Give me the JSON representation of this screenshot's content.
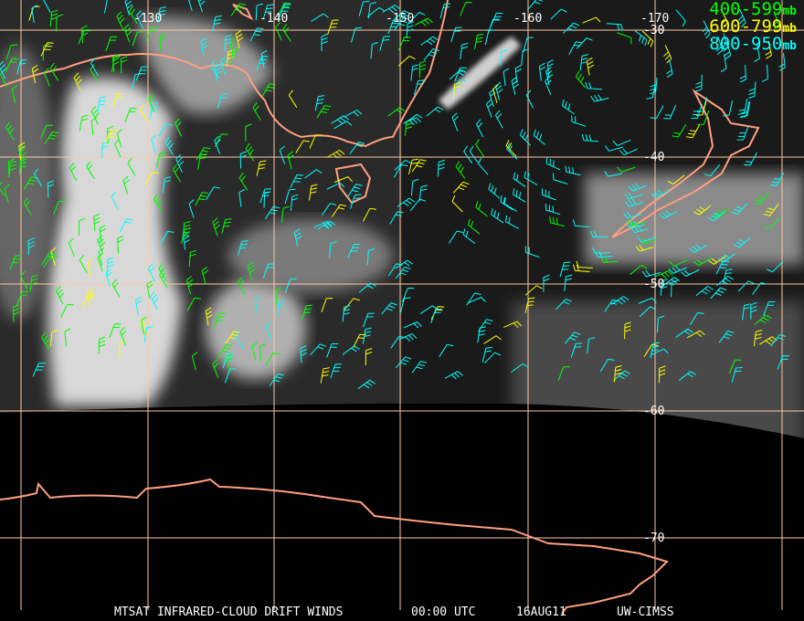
{
  "map": {
    "longitude_labels": [
      "-130",
      "-140",
      "-150",
      "-160",
      "-170"
    ],
    "latitude_labels": [
      "-30",
      "-40",
      "-50",
      "-60",
      "-70"
    ],
    "grid_color": "#ffc8a0",
    "coast_color": "#ff9f7f"
  },
  "legend": [
    {
      "range": "400-599",
      "unit": "mb",
      "color": "#00ff00"
    },
    {
      "range": "600-799",
      "unit": "mb",
      "color": "#ffff00"
    },
    {
      "range": "800-950",
      "unit": "mb",
      "color": "#00ffff"
    }
  ],
  "caption": {
    "product": "MTSAT INFRARED-CLOUD DRIFT WINDS",
    "time": "00:00 UTC",
    "date": "16AUG11",
    "source": "UW-CIMSS"
  }
}
